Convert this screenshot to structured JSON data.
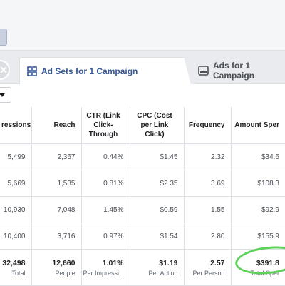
{
  "tabs": [
    {
      "label": "Ad Sets for 1 Campaign",
      "active": true,
      "icon": "grid-icon"
    },
    {
      "label": "Ads for 1 Campaign",
      "active": false,
      "icon": "ad-preview-icon"
    }
  ],
  "table": {
    "headers": [
      "ressions",
      "Reach",
      "CTR (Link Click-Through",
      "CPC (Cost per Link Click)",
      "Frequency",
      "Amount Sper"
    ],
    "rows": [
      [
        "5,499",
        "2,367",
        "0.44%",
        "$1.45",
        "2.32",
        "$34.6"
      ],
      [
        "5,669",
        "1,535",
        "0.81%",
        "$2.35",
        "3.69",
        "$108.3"
      ],
      [
        "10,930",
        "7,048",
        "1.45%",
        "$0.59",
        "1.55",
        "$92.9"
      ],
      [
        "10,400",
        "3,716",
        "0.97%",
        "$1.54",
        "2.80",
        "$155.9"
      ]
    ],
    "totals": [
      {
        "value": "32,498",
        "label": "Total"
      },
      {
        "value": "12,660",
        "label": "People"
      },
      {
        "value": "1.01%",
        "label": "Per Impressi…"
      },
      {
        "value": "$1.19",
        "label": "Per Action"
      },
      {
        "value": "2.57",
        "label": "Per Person"
      },
      {
        "value": "$391.8",
        "label": "Total Sper"
      }
    ]
  },
  "colors": {
    "accent": "#365899",
    "highlight": "#5ed15a"
  }
}
